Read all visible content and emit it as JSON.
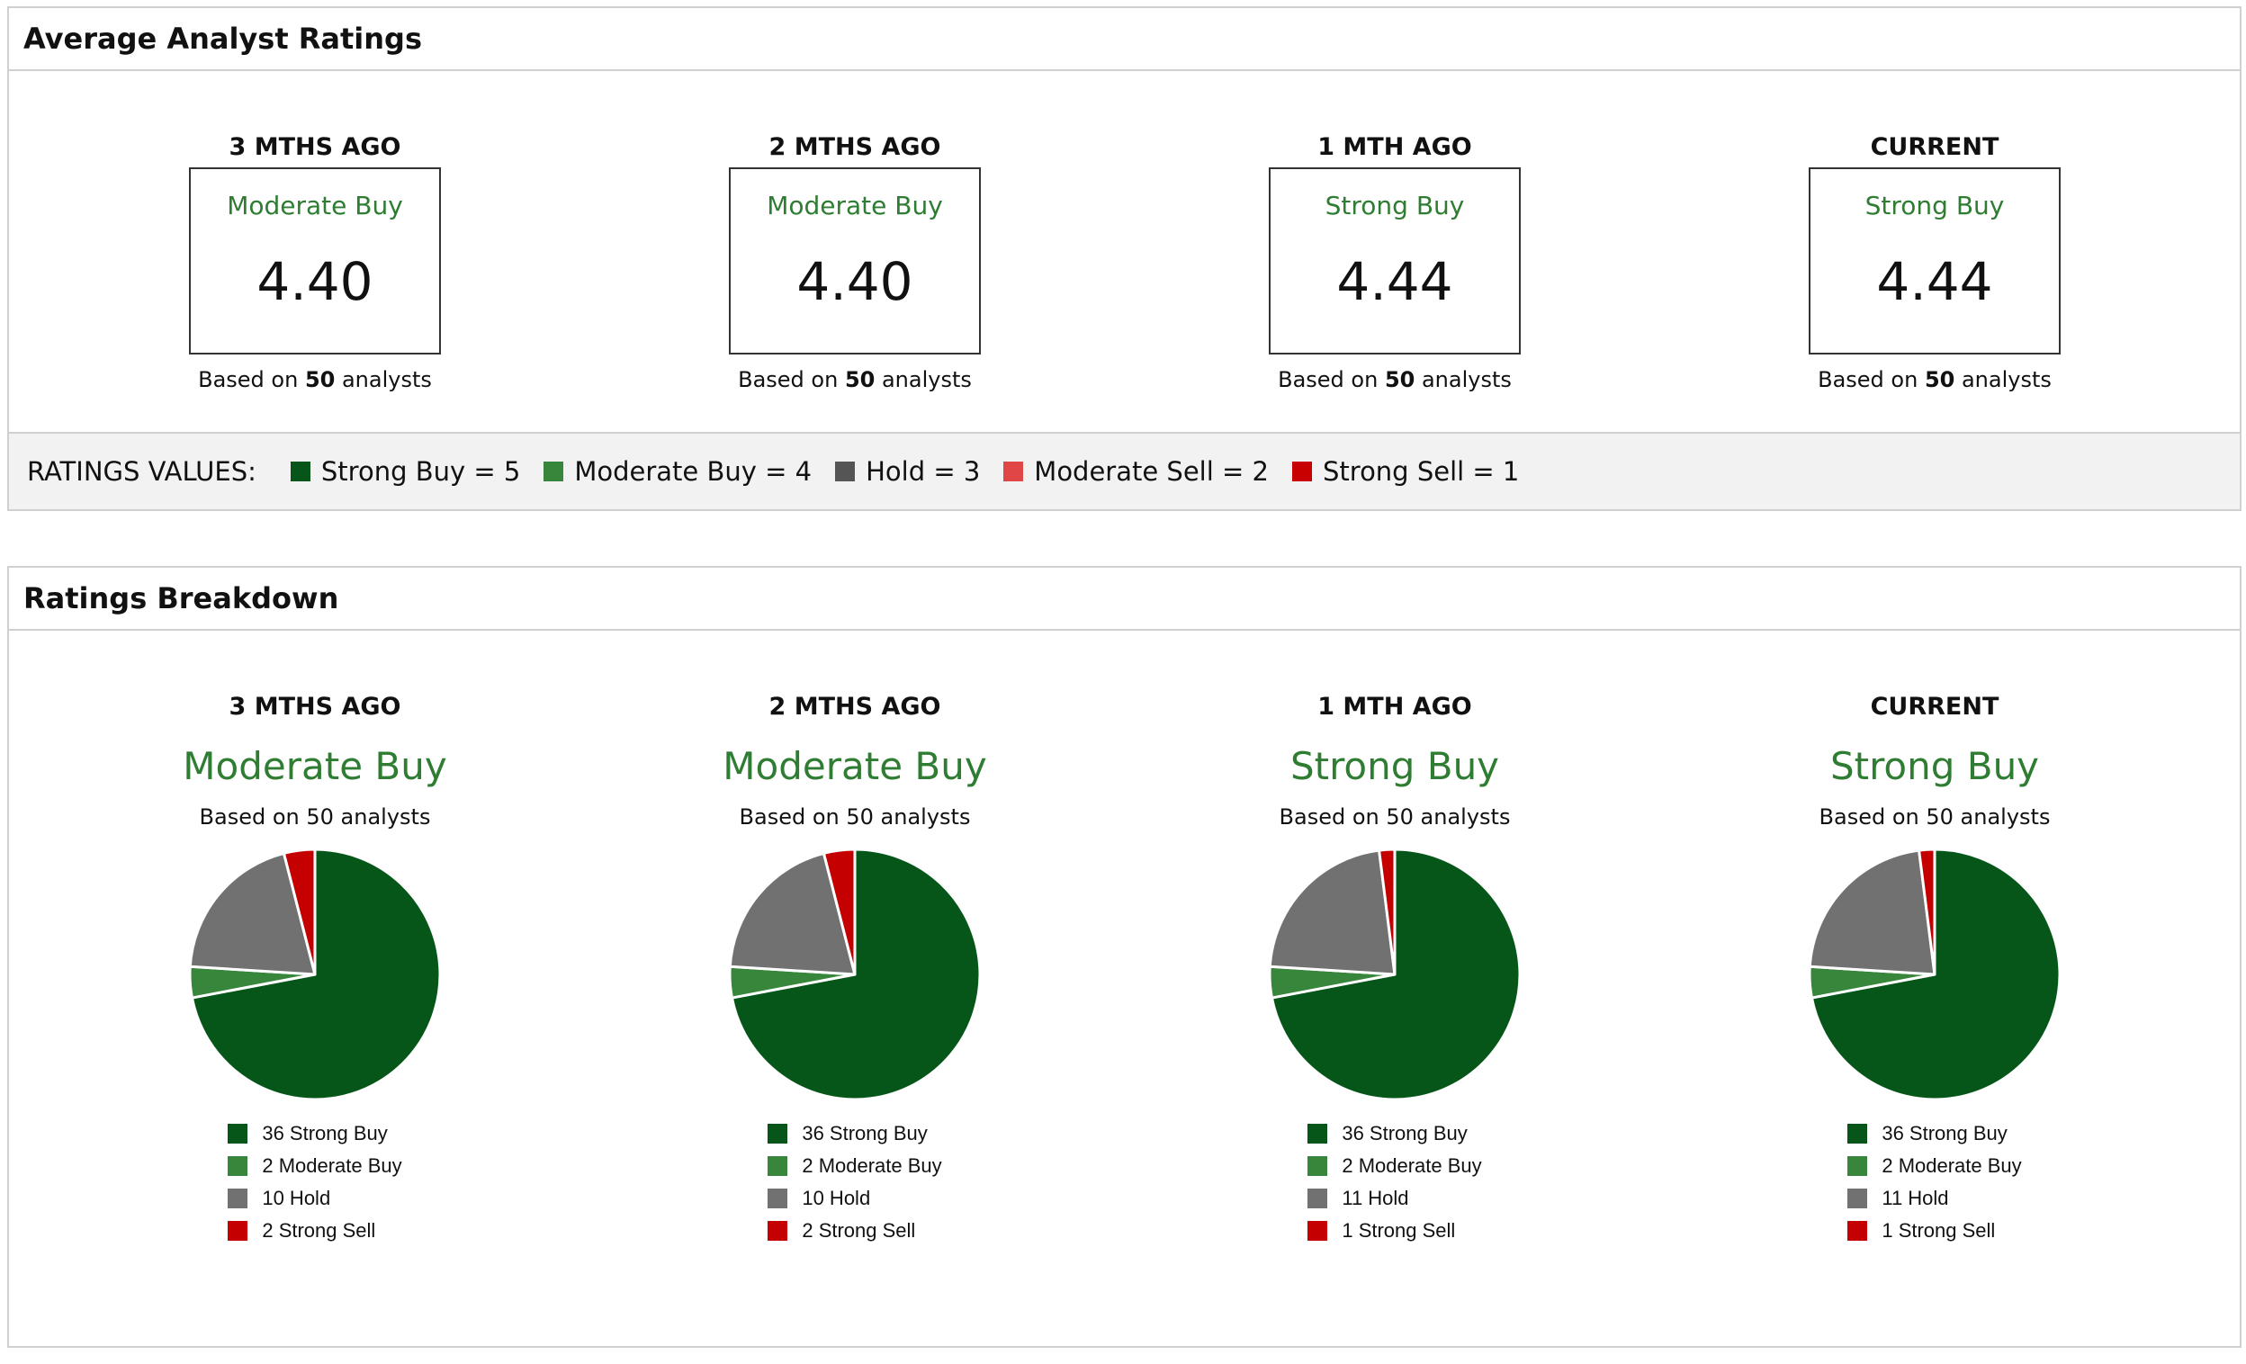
{
  "average": {
    "title": "Average Analyst Ratings",
    "periods": [
      {
        "label": "3 MTHS AGO",
        "rating": "Moderate Buy",
        "score": "4.40",
        "based_prefix": "Based on ",
        "count": "50",
        "based_suffix": " analysts"
      },
      {
        "label": "2 MTHS AGO",
        "rating": "Moderate Buy",
        "score": "4.40",
        "based_prefix": "Based on ",
        "count": "50",
        "based_suffix": " analysts"
      },
      {
        "label": "1 MTH AGO",
        "rating": "Strong Buy",
        "score": "4.44",
        "based_prefix": "Based on ",
        "count": "50",
        "based_suffix": " analysts"
      },
      {
        "label": "CURRENT",
        "rating": "Strong Buy",
        "score": "4.44",
        "based_prefix": "Based on ",
        "count": "50",
        "based_suffix": " analysts"
      }
    ],
    "legend_title": "RATINGS VALUES:",
    "legend": [
      {
        "label": "Strong Buy = 5",
        "color": "#06561a"
      },
      {
        "label": "Moderate Buy = 4",
        "color": "#38853c"
      },
      {
        "label": "Hold = 3",
        "color": "#555555"
      },
      {
        "label": "Moderate Sell = 2",
        "color": "#e04646"
      },
      {
        "label": "Strong Sell = 1",
        "color": "#c80000"
      }
    ]
  },
  "breakdown": {
    "title": "Ratings Breakdown"
  },
  "colors": {
    "Strong Buy": "#06561a",
    "Moderate Buy": "#38853c",
    "Hold": "#717171",
    "Strong Sell": "#c40000",
    "rating_text": "#2e7d32"
  },
  "chart_data": [
    {
      "type": "pie",
      "title": "3 MTHS AGO",
      "subtitle": "Moderate Buy",
      "note": "Based on 50 analysts",
      "slices": [
        {
          "label": "36 Strong Buy",
          "category": "Strong Buy",
          "value": 36
        },
        {
          "label": "2 Moderate Buy",
          "category": "Moderate Buy",
          "value": 2
        },
        {
          "label": "10 Hold",
          "category": "Hold",
          "value": 10
        },
        {
          "label": "2 Strong Sell",
          "category": "Strong Sell",
          "value": 2
        }
      ]
    },
    {
      "type": "pie",
      "title": "2 MTHS AGO",
      "subtitle": "Moderate Buy",
      "note": "Based on 50 analysts",
      "slices": [
        {
          "label": "36 Strong Buy",
          "category": "Strong Buy",
          "value": 36
        },
        {
          "label": "2 Moderate Buy",
          "category": "Moderate Buy",
          "value": 2
        },
        {
          "label": "10 Hold",
          "category": "Hold",
          "value": 10
        },
        {
          "label": "2 Strong Sell",
          "category": "Strong Sell",
          "value": 2
        }
      ]
    },
    {
      "type": "pie",
      "title": "1 MTH AGO",
      "subtitle": "Strong Buy",
      "note": "Based on 50 analysts",
      "slices": [
        {
          "label": "36 Strong Buy",
          "category": "Strong Buy",
          "value": 36
        },
        {
          "label": "2 Moderate Buy",
          "category": "Moderate Buy",
          "value": 2
        },
        {
          "label": "11 Hold",
          "category": "Hold",
          "value": 11
        },
        {
          "label": "1 Strong Sell",
          "category": "Strong Sell",
          "value": 1
        }
      ]
    },
    {
      "type": "pie",
      "title": "CURRENT",
      "subtitle": "Strong Buy",
      "note": "Based on 50 analysts",
      "slices": [
        {
          "label": "36 Strong Buy",
          "category": "Strong Buy",
          "value": 36
        },
        {
          "label": "2 Moderate Buy",
          "category": "Moderate Buy",
          "value": 2
        },
        {
          "label": "11 Hold",
          "category": "Hold",
          "value": 11
        },
        {
          "label": "1 Strong Sell",
          "category": "Strong Sell",
          "value": 1
        }
      ]
    }
  ]
}
